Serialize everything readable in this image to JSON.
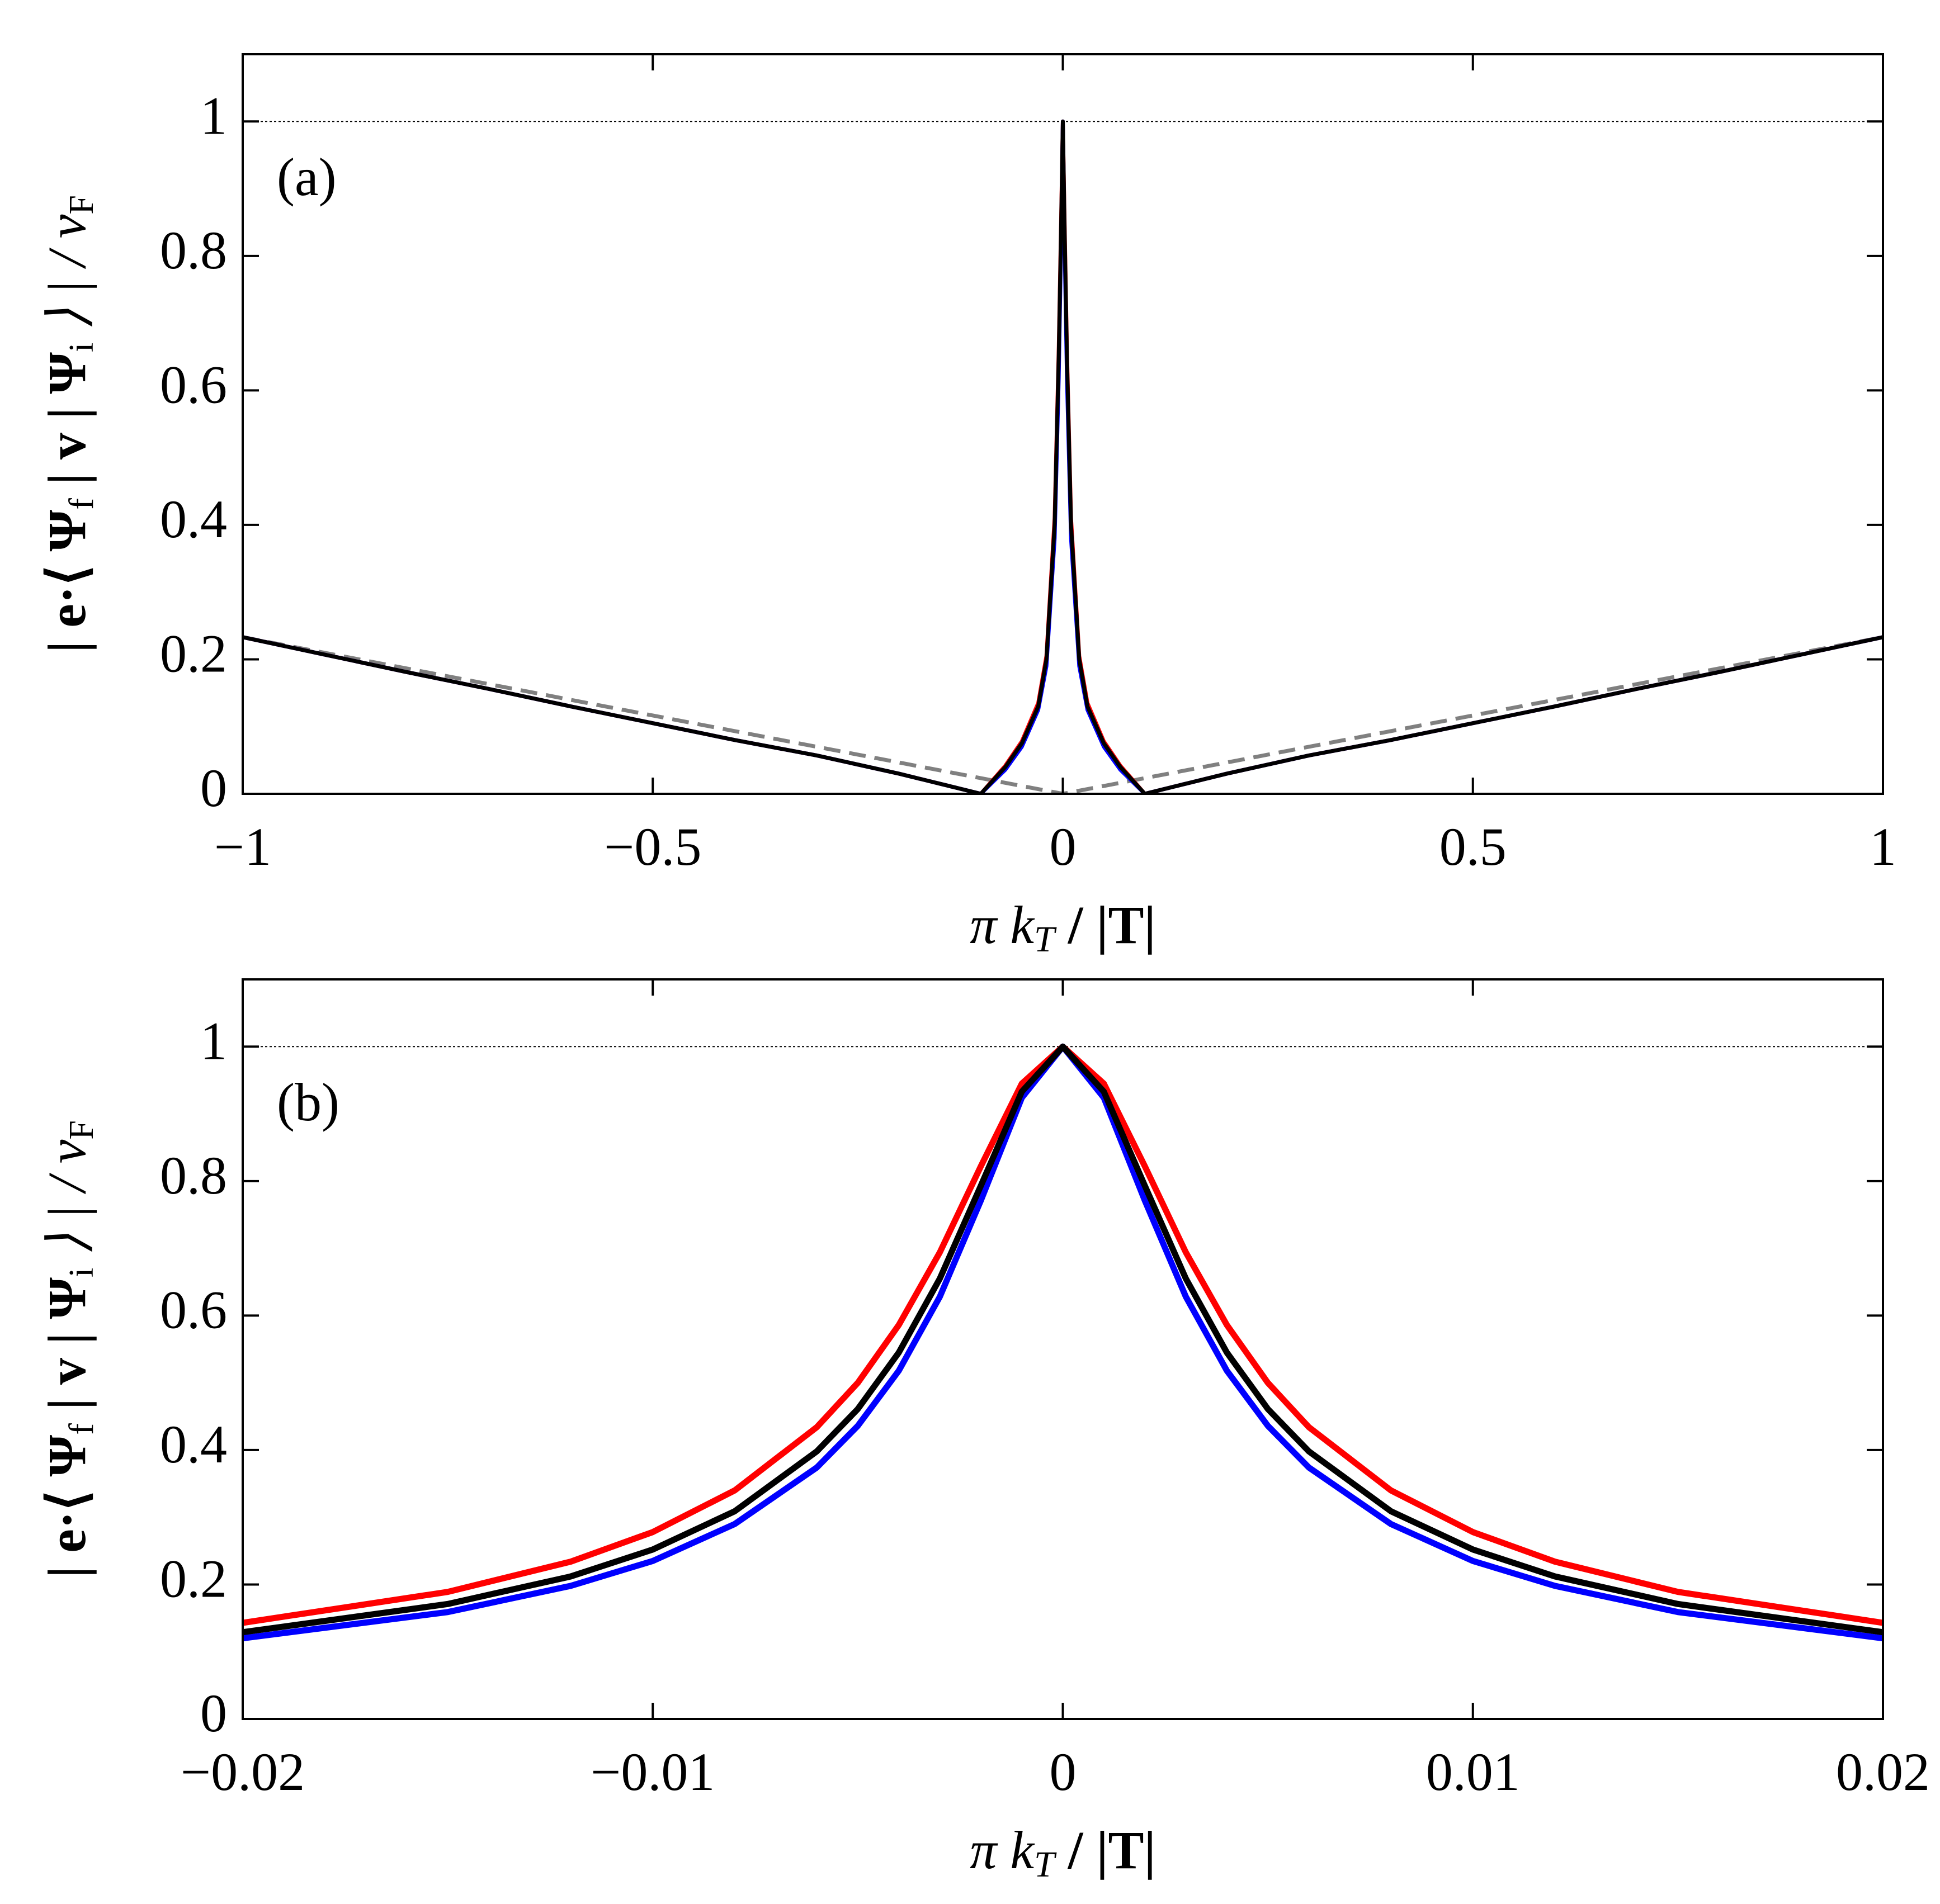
{
  "chart_data": [
    {
      "type": "line",
      "label": "(a)",
      "xlabel": [
        "π k",
        "T",
        " / |T|"
      ],
      "ylabel": [
        "| e·⟨ Ψ",
        "f",
        " | v | Ψ",
        "i",
        " ⟩ | / v",
        "F"
      ],
      "xlim": [
        -1,
        1
      ],
      "ylim": [
        0,
        1.1
      ],
      "xticks": [
        {
          "value": -1,
          "label": "−1"
        },
        {
          "value": -0.5,
          "label": "−0.5"
        },
        0,
        0.5,
        1
      ],
      "yticks": [
        0,
        0.2,
        0.4,
        0.6,
        0.8,
        1
      ],
      "series": [
        {
          "color": "#000000",
          "linestyle": "dotted",
          "width": 2,
          "x": [
            -1,
            1
          ],
          "values": [
            1,
            1
          ]
        },
        {
          "color": "#808080",
          "linestyle": "dashed",
          "width": 7,
          "x": [
            -1,
            0,
            1
          ],
          "values": [
            0.233,
            0,
            0.233
          ]
        },
        {
          "color": "#ff0000",
          "linestyle": "solid",
          "width": 7,
          "x": [
            -1,
            -0.9,
            -0.8,
            -0.7,
            -0.6,
            -0.5,
            -0.4,
            -0.3,
            -0.2,
            -0.15,
            -0.1,
            -0.07,
            -0.05,
            -0.03,
            -0.02,
            -0.01,
            -0.005,
            -0.002,
            0,
            0.002,
            0.005,
            0.01,
            0.02,
            0.03,
            0.05,
            0.07,
            0.1,
            0.15,
            0.2,
            0.3,
            0.4,
            0.5,
            0.6,
            0.7,
            0.8,
            0.9,
            1
          ],
          "values": [
            0.233,
            0.207,
            0.181,
            0.156,
            0.13,
            0.105,
            0.08,
            0.057,
            0.03,
            0.015,
            0,
            0.042,
            0.078,
            0.135,
            0.205,
            0.41,
            0.66,
            0.86,
            1,
            0.86,
            0.66,
            0.41,
            0.205,
            0.135,
            0.078,
            0.042,
            0,
            0.015,
            0.03,
            0.057,
            0.08,
            0.105,
            0.13,
            0.156,
            0.181,
            0.207,
            0.233
          ]
        },
        {
          "color": "#0000ff",
          "linestyle": "solid",
          "width": 7,
          "x": [
            -1,
            -0.9,
            -0.8,
            -0.7,
            -0.6,
            -0.5,
            -0.4,
            -0.3,
            -0.2,
            -0.15,
            -0.1,
            -0.07,
            -0.05,
            -0.03,
            -0.02,
            -0.01,
            -0.005,
            -0.002,
            0,
            0.002,
            0.005,
            0.01,
            0.02,
            0.03,
            0.05,
            0.07,
            0.1,
            0.15,
            0.2,
            0.3,
            0.4,
            0.5,
            0.6,
            0.7,
            0.8,
            0.9,
            1
          ],
          "values": [
            0.233,
            0.207,
            0.181,
            0.156,
            0.13,
            0.105,
            0.08,
            0.057,
            0.03,
            0.015,
            0,
            0.036,
            0.07,
            0.125,
            0.19,
            0.38,
            0.62,
            0.83,
            1,
            0.83,
            0.62,
            0.38,
            0.19,
            0.125,
            0.07,
            0.036,
            0,
            0.015,
            0.03,
            0.057,
            0.08,
            0.105,
            0.13,
            0.156,
            0.181,
            0.207,
            0.233
          ]
        },
        {
          "color": "#000000",
          "linestyle": "solid",
          "width": 7,
          "x": [
            -1,
            -0.9,
            -0.8,
            -0.7,
            -0.6,
            -0.5,
            -0.4,
            -0.3,
            -0.2,
            -0.15,
            -0.1,
            -0.07,
            -0.05,
            -0.03,
            -0.02,
            -0.01,
            -0.005,
            -0.002,
            0,
            0.002,
            0.005,
            0.01,
            0.02,
            0.03,
            0.05,
            0.07,
            0.1,
            0.15,
            0.2,
            0.3,
            0.4,
            0.5,
            0.6,
            0.7,
            0.8,
            0.9,
            1
          ],
          "values": [
            0.233,
            0.207,
            0.181,
            0.156,
            0.13,
            0.105,
            0.08,
            0.057,
            0.03,
            0.015,
            0,
            0.04,
            0.075,
            0.13,
            0.2,
            0.4,
            0.65,
            0.85,
            1,
            0.85,
            0.65,
            0.4,
            0.2,
            0.13,
            0.075,
            0.04,
            0,
            0.015,
            0.03,
            0.057,
            0.08,
            0.105,
            0.13,
            0.156,
            0.181,
            0.207,
            0.233
          ]
        }
      ]
    },
    {
      "type": "line",
      "label": "(b)",
      "xlabel": [
        "π k",
        "T",
        " / |T|"
      ],
      "ylabel": [
        "| e·⟨ Ψ",
        "f",
        " | v | Ψ",
        "i",
        " ⟩ | / v",
        "F"
      ],
      "xlim": [
        -0.02,
        0.02
      ],
      "ylim": [
        0,
        1.1
      ],
      "xticks": [
        {
          "value": -0.02,
          "label": "−0.02"
        },
        {
          "value": -0.01,
          "label": "−0.01"
        },
        0,
        0.01,
        0.02
      ],
      "yticks": [
        0,
        0.2,
        0.4,
        0.6,
        0.8,
        1
      ],
      "series": [
        {
          "color": "#000000",
          "linestyle": "dotted",
          "width": 2,
          "x": [
            -0.02,
            0.02
          ],
          "values": [
            1,
            1
          ]
        },
        {
          "color": "#ff0000",
          "linestyle": "solid",
          "width": 11,
          "x": [
            -0.02,
            -0.015,
            -0.012,
            -0.01,
            -0.008,
            -0.006,
            -0.005,
            -0.004,
            -0.003,
            -0.002,
            -0.001,
            0,
            0.001,
            0.002,
            0.003,
            0.004,
            0.005,
            0.006,
            0.008,
            0.01,
            0.012,
            0.015,
            0.02
          ],
          "values": [
            0.143,
            0.189,
            0.234,
            0.278,
            0.34,
            0.434,
            0.5,
            0.586,
            0.694,
            0.822,
            0.945,
            1,
            0.945,
            0.822,
            0.694,
            0.586,
            0.5,
            0.434,
            0.34,
            0.278,
            0.234,
            0.189,
            0.143
          ]
        },
        {
          "color": "#0000ff",
          "linestyle": "solid",
          "width": 11,
          "x": [
            -0.02,
            -0.015,
            -0.012,
            -0.01,
            -0.008,
            -0.006,
            -0.005,
            -0.004,
            -0.003,
            -0.002,
            -0.001,
            0,
            0.001,
            0.002,
            0.003,
            0.004,
            0.005,
            0.006,
            0.008,
            0.01,
            0.012,
            0.015,
            0.02
          ],
          "values": [
            0.12,
            0.159,
            0.198,
            0.235,
            0.29,
            0.374,
            0.436,
            0.518,
            0.628,
            0.771,
            0.924,
            1,
            0.924,
            0.771,
            0.628,
            0.518,
            0.436,
            0.374,
            0.29,
            0.235,
            0.198,
            0.159,
            0.12
          ]
        },
        {
          "color": "#000000",
          "linestyle": "solid",
          "width": 11,
          "x": [
            -0.02,
            -0.015,
            -0.012,
            -0.01,
            -0.008,
            -0.006,
            -0.005,
            -0.004,
            -0.003,
            -0.002,
            -0.001,
            0,
            0.001,
            0.002,
            0.003,
            0.004,
            0.005,
            0.006,
            0.008,
            0.01,
            0.012,
            0.015,
            0.02
          ],
          "values": [
            0.129,
            0.171,
            0.212,
            0.252,
            0.309,
            0.398,
            0.461,
            0.545,
            0.655,
            0.793,
            0.933,
            1,
            0.933,
            0.793,
            0.655,
            0.545,
            0.461,
            0.398,
            0.309,
            0.252,
            0.212,
            0.171,
            0.129
          ]
        }
      ]
    }
  ]
}
